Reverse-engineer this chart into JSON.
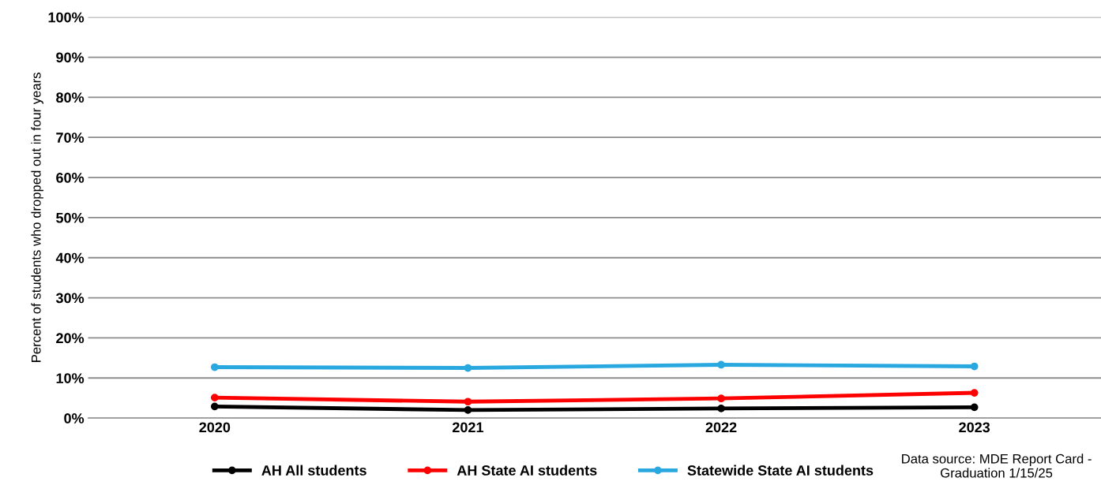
{
  "chart_data": {
    "type": "line",
    "ylabel": "Percent of students who dropped out in four years",
    "categories": [
      "2020",
      "2021",
      "2022",
      "2023"
    ],
    "series": [
      {
        "name": "AH All students",
        "color": "#000000",
        "values": [
          2.9,
          2.0,
          2.4,
          2.7
        ]
      },
      {
        "name": "AH State AI students",
        "color": "#ff0000",
        "values": [
          5.1,
          4.1,
          4.9,
          6.3
        ]
      },
      {
        "name": "Statewide State AI students",
        "color": "#29a8e0",
        "values": [
          12.7,
          12.5,
          13.3,
          12.9
        ]
      }
    ],
    "ylim": [
      0,
      100
    ],
    "yticks": [
      {
        "value": 0,
        "label": "0%"
      },
      {
        "value": 10,
        "label": "10%"
      },
      {
        "value": 20,
        "label": "20%"
      },
      {
        "value": 30,
        "label": "30%"
      },
      {
        "value": 40,
        "label": "40%"
      },
      {
        "value": 50,
        "label": "50%"
      },
      {
        "value": 60,
        "label": "60%"
      },
      {
        "value": 70,
        "label": "70%"
      },
      {
        "value": 80,
        "label": "80%"
      },
      {
        "value": 90,
        "label": "90%"
      },
      {
        "value": 100,
        "label": "100%"
      }
    ],
    "grid": "y",
    "legend": "bottom",
    "marker": "circle",
    "line_style": "solid",
    "annotations": [
      "Data source: MDE Report Card - Graduation 1/15/25"
    ]
  }
}
